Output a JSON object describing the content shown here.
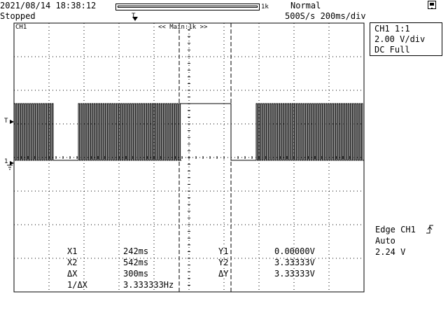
{
  "status_bar": {
    "datetime": "2021/08/14 18:38:12",
    "run_state": "Stopped",
    "record_length": "1k",
    "acquisition_mode": "Normal",
    "timebase": "500S/s 200ms/div",
    "trigger_pos_marker": "T"
  },
  "screen": {
    "channel_tag": "CH1",
    "zoom_label": "<< Main:1k >>",
    "ch_level_marker": "1",
    "trigger_level_marker": "T"
  },
  "channel_info": {
    "line1": "CH1 1:1",
    "line2": "2.00 V/div",
    "line3": "DC   Full"
  },
  "trigger_info": {
    "line1": "Edge CH1",
    "line2": "Auto",
    "line3": "2.24 V",
    "slope_icon": "rising-edge-icon"
  },
  "cursors": {
    "x1_label": "X1",
    "x1_value": "242ms",
    "x2_label": "X2",
    "x2_value": "542ms",
    "dx_label": "ΔX",
    "dx_value": "300ms",
    "inv_dx_label": "1/ΔX",
    "inv_dx_value": "3.333333Hz",
    "y1_label": "Y1",
    "y1_value": "0.00000V",
    "y2_label": "Y2",
    "y2_value": "3.33333V",
    "dy_label": "ΔY",
    "dy_value": "3.33333V"
  },
  "colors": {
    "trace": "#000000",
    "grid": "#000000",
    "background": "#ffffff"
  }
}
